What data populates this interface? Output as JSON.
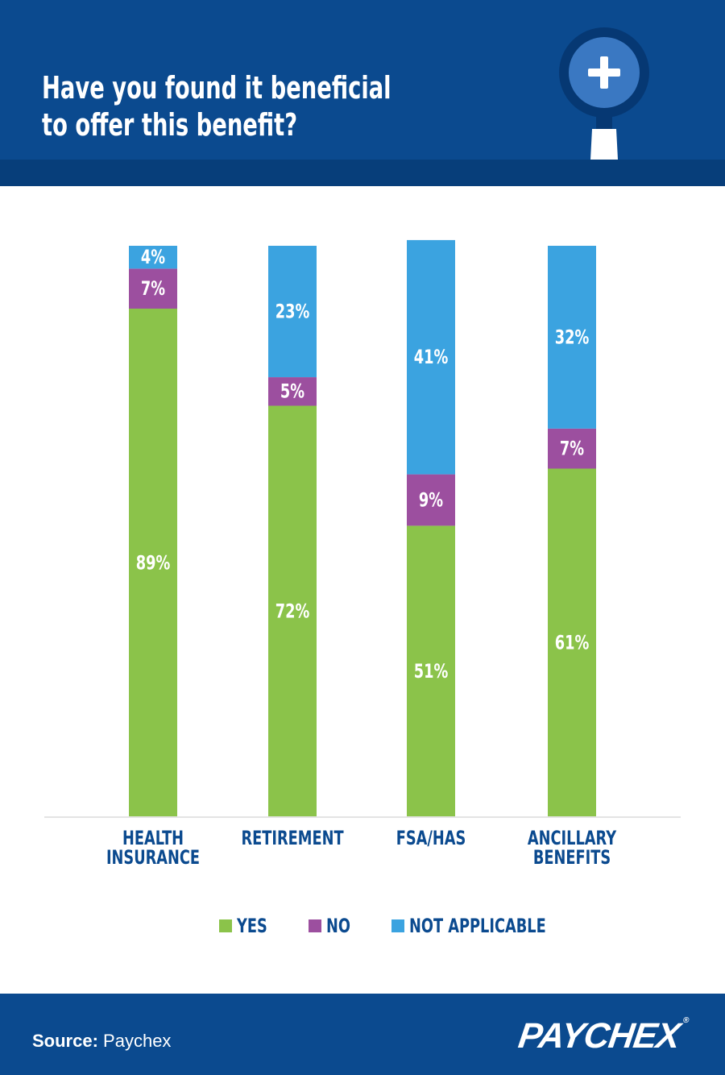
{
  "header": {
    "title_line1": "Have you found it beneficial",
    "title_line2": "to offer this benefit?",
    "icon": "magnifier-plus-icon"
  },
  "colors": {
    "header_bg": "#0b4a8f",
    "yes": "#8bc34a",
    "no": "#9c4f9f",
    "not_applicable": "#3ba3e0"
  },
  "chart_data": {
    "type": "bar",
    "stacked": true,
    "categories": [
      [
        "HEALTH",
        "INSURANCE"
      ],
      [
        "RETIREMENT"
      ],
      [
        "FSA/HAS"
      ],
      [
        "ANCILLARY",
        "BENEFITS"
      ]
    ],
    "series": [
      {
        "name": "YES",
        "values": [
          89,
          72,
          51,
          61
        ],
        "labels": [
          "89%",
          "72%",
          "51%",
          "61%"
        ]
      },
      {
        "name": "NO",
        "values": [
          7,
          5,
          9,
          7
        ],
        "labels": [
          "7%",
          "5%",
          "9%",
          "7%"
        ]
      },
      {
        "name": "NOT APPLICABLE",
        "values": [
          4,
          23,
          41,
          32
        ],
        "labels": [
          "4%",
          "23%",
          "41%",
          "32%"
        ]
      }
    ],
    "ylim": [
      0,
      100
    ],
    "grid": false,
    "legend_position": "bottom"
  },
  "footer": {
    "source_label": "Source:",
    "source_value": "Paychex",
    "logo_text": "PAYCHEX",
    "logo_mark": "®"
  }
}
